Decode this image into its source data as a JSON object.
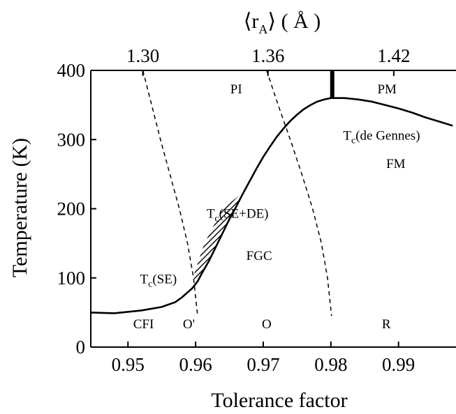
{
  "chart_data": {
    "type": "line",
    "title": "",
    "xlabel": "Tolerance factor",
    "ylabel": "Temperature (K)",
    "top_xlabel": "⟨r",
    "top_xlabel_sub": "A",
    "top_xlabel_unit": "⟩ ( Å )",
    "xlim": [
      0.9445,
      0.9985
    ],
    "ylim": [
      0,
      400
    ],
    "x_ticks": [
      0.95,
      0.96,
      0.97,
      0.98,
      0.99
    ],
    "x_tick_labels": [
      "0.95",
      "0.96",
      "0.97",
      "0.98",
      "0.99"
    ],
    "y_ticks": [
      0,
      100,
      200,
      300,
      400
    ],
    "y_tick_labels": [
      "0",
      "100",
      "200",
      "300",
      "400"
    ],
    "top_ticks": [
      {
        "x": 0.9522,
        "label": "1.30"
      },
      {
        "x": 0.9707,
        "label": "1.36"
      },
      {
        "x": 0.9893,
        "label": "1.42"
      }
    ],
    "grid": false,
    "series": [
      {
        "style": "solid",
        "x": [
          0.9445,
          0.948,
          0.952,
          0.955,
          0.957,
          0.958,
          0.9595,
          0.9603,
          0.961,
          0.962,
          0.963,
          0.964,
          0.965,
          0.966,
          0.967,
          0.968,
          0.969,
          0.97,
          0.971,
          0.972,
          0.973,
          0.974,
          0.975,
          0.976,
          0.977,
          0.978,
          0.979,
          0.98,
          0.981,
          0.982,
          0.984,
          0.986,
          0.988,
          0.99,
          0.992,
          0.994,
          0.996,
          0.998
        ],
        "y": [
          50,
          49,
          53,
          58,
          65,
          72,
          85,
          95,
          108,
          125,
          145,
          165,
          185,
          203,
          222,
          240,
          258,
          275,
          290,
          304,
          316,
          327,
          336,
          344,
          350,
          355,
          358,
          360,
          360,
          360,
          358,
          355,
          350,
          345,
          339,
          332,
          326,
          320
        ]
      },
      {
        "style": "dashed",
        "x": [
          0.9522,
          0.9535,
          0.9548,
          0.9562,
          0.9576,
          0.9588,
          0.9597,
          0.9603
        ],
        "y": [
          400,
          350,
          300,
          250,
          200,
          150,
          100,
          45
        ]
      },
      {
        "style": "dashed",
        "x": [
          0.9705,
          0.9722,
          0.974,
          0.9757,
          0.9773,
          0.9786,
          0.9795,
          0.9801
        ],
        "y": [
          400,
          350,
          300,
          250,
          200,
          150,
          100,
          45
        ]
      }
    ],
    "vertical_marker": {
      "x": 0.9802,
      "y_from": 360,
      "y_to": 400
    },
    "hatched_region": {
      "x": [
        0.9603,
        0.961,
        0.962,
        0.963,
        0.964,
        0.965,
        0.966,
        0.967,
        0.9668,
        0.964,
        0.9613,
        0.9596
      ],
      "y": [
        95,
        108,
        125,
        145,
        165,
        185,
        203,
        222,
        222,
        200,
        150,
        100
      ]
    },
    "annotations": [
      {
        "x": 0.9545,
        "y": 92,
        "text": "T",
        "sub": "c",
        "rest": "(SE)"
      },
      {
        "x": 0.9662,
        "y": 187,
        "text": "T",
        "sub": "c",
        "rest": "(SE+DE)"
      },
      {
        "x": 0.9875,
        "y": 300,
        "text": "T",
        "sub": "c",
        "rest": "(de Gennes)"
      },
      {
        "x": 0.966,
        "y": 367,
        "text": "PI"
      },
      {
        "x": 0.9883,
        "y": 367,
        "text": "PM"
      },
      {
        "x": 0.9896,
        "y": 259,
        "text": "FM"
      },
      {
        "x": 0.9694,
        "y": 126,
        "text": "FGC"
      },
      {
        "x": 0.9523,
        "y": 27,
        "text": "CFI"
      },
      {
        "x": 0.959,
        "y": 27,
        "text": "O'"
      },
      {
        "x": 0.9705,
        "y": 27,
        "text": "O"
      },
      {
        "x": 0.9882,
        "y": 27,
        "text": "R"
      }
    ]
  }
}
